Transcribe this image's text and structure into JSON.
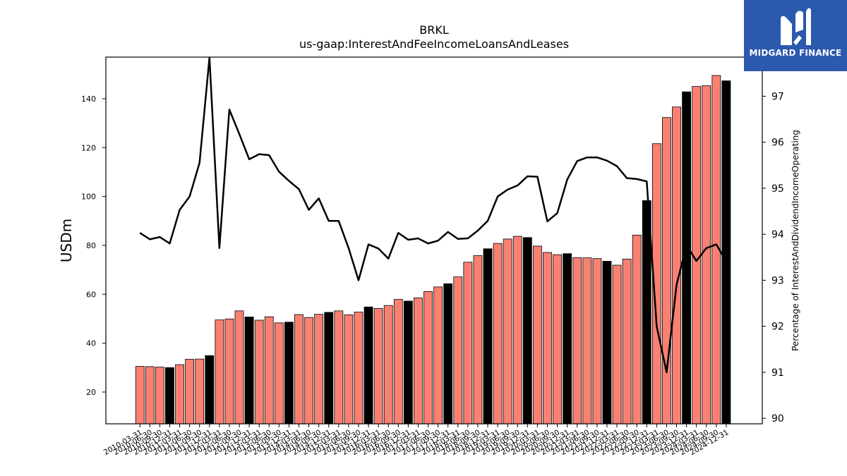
{
  "brand": {
    "name": "MIDGARD FINANCE",
    "icon": "midgard-m-icon",
    "color": "#2b59ad"
  },
  "chart_data": {
    "type": "bar",
    "title": "BRKL",
    "subtitle": "us-gaap:InterestAndFeeIncomeLoansAndLeases",
    "ylabel": "USDm",
    "y2label": "Percentage of InterestAndDividendIncomeOperating",
    "ylim": [
      7,
      157
    ],
    "y2lim": [
      89.88,
      97.85
    ],
    "yticks": [
      20,
      40,
      60,
      80,
      100,
      120,
      140
    ],
    "y2ticks": [
      90,
      91,
      92,
      93,
      94,
      95,
      96,
      97
    ],
    "bar_color": "#fa8072",
    "q4_bar_color": "#000000",
    "line_color": "#000000",
    "grid": false,
    "categories": [
      "2010-03-31",
      "2010-06-30",
      "2010-09-30",
      "2010-12-31",
      "2011-03-31",
      "2011-06-30",
      "2011-09-30",
      "2011-12-31",
      "2012-03-31",
      "2012-06-30",
      "2012-09-30",
      "2012-12-31",
      "2013-03-31",
      "2013-06-30",
      "2013-09-30",
      "2013-12-31",
      "2014-03-31",
      "2014-06-30",
      "2014-09-30",
      "2014-12-31",
      "2015-03-31",
      "2015-06-30",
      "2015-09-30",
      "2015-12-31",
      "2016-03-31",
      "2016-06-30",
      "2016-09-30",
      "2016-12-31",
      "2017-03-31",
      "2017-06-30",
      "2017-09-30",
      "2017-12-31",
      "2018-03-31",
      "2018-06-30",
      "2018-09-30",
      "2018-12-31",
      "2019-03-31",
      "2019-06-30",
      "2019-09-30",
      "2019-12-31",
      "2020-03-31",
      "2020-06-30",
      "2020-09-30",
      "2020-12-31",
      "2021-03-31",
      "2021-06-30",
      "2021-09-30",
      "2021-12-31",
      "2022-03-31",
      "2022-06-30",
      "2022-09-30",
      "2022-12-31",
      "2023-03-31",
      "2023-06-30",
      "2023-09-30",
      "2023-12-31",
      "2024-03-31",
      "2024-06-30",
      "2024-09-30",
      "2024-12-31"
    ],
    "xtick_labels": [
      "2010-03-31",
      "2010-06-30",
      "2010-09-30",
      "2010-12-31",
      "2011-03-31",
      "2011-06-30",
      "2011-09-30",
      "2011-12-31",
      "2012-03-31",
      "2012-06-30",
      "2012-09-30",
      "2012-12-31",
      "2013-03-31",
      "2013-06-30",
      "2013-09-30",
      "2013-12-31",
      "2014-03-31",
      "2014-06-30",
      "2014-09-30",
      "2014-12-31",
      "2015-03-31",
      "2015-06-30",
      "2015-09-30",
      "2015-12-31",
      "2016-03-31",
      "2016-06-30",
      "2016-09-30",
      "2016-12-31",
      "2017-03-31",
      "2017-06-30",
      "2017-09-30",
      "2017-12-31",
      "2018-03-31",
      "2018-06-30",
      "2018-09-30",
      "2018-12-31",
      "2019-03-31",
      "2019-06-30",
      "2019-09-30",
      "2019-12-31",
      "2020-03-31",
      "2020-06-30",
      "2020-09-30",
      "2020-12-31",
      "2021-03-31",
      "2021-06-30",
      "2021-09-30",
      "2021-12-31",
      "2022-03-31",
      "2022-06-30",
      "2022-09-30",
      "2022-12-31",
      "2023-03-31",
      "2023-06-30",
      "2023-09-30",
      "2023-12-31",
      "2024-03-31",
      "2024-06-30",
      "2024-09-30",
      "2024-12-31"
    ],
    "series": [
      {
        "type": "bar",
        "axis": "left",
        "values": [
          30.5,
          30.4,
          30.2,
          30.0,
          31.2,
          33.4,
          33.5,
          34.9,
          49.5,
          49.9,
          53.2,
          50.7,
          49.4,
          50.8,
          48.3,
          48.6,
          51.7,
          50.5,
          51.8,
          52.6,
          53.2,
          51.6,
          52.7,
          54.8,
          54.2,
          55.4,
          57.9,
          57.2,
          58.5,
          61.1,
          63.0,
          64.3,
          67.1,
          73.1,
          75.8,
          78.6,
          80.8,
          82.6,
          83.7,
          83.2,
          79.7,
          77.1,
          76.2,
          76.6,
          75.0,
          74.9,
          74.6,
          73.5,
          71.9,
          74.4,
          84.2,
          98.3,
          121.6,
          132.3,
          136.6,
          142.8,
          145.0,
          145.3,
          149.5,
          147.3
        ]
      },
      {
        "type": "line",
        "axis": "right",
        "values": [
          94.03,
          93.89,
          93.94,
          93.8,
          94.53,
          94.82,
          95.55,
          97.84,
          93.7,
          96.71,
          96.18,
          95.63,
          95.74,
          95.72,
          95.36,
          95.16,
          94.98,
          94.53,
          94.78,
          94.29,
          94.29,
          93.7,
          93.0,
          93.78,
          93.69,
          93.47,
          94.03,
          93.88,
          93.91,
          93.8,
          93.86,
          94.05,
          93.9,
          93.91,
          94.08,
          94.29,
          94.82,
          94.97,
          95.06,
          95.26,
          95.25,
          94.28,
          94.46,
          95.19,
          95.59,
          95.67,
          95.67,
          95.6,
          95.48,
          95.22,
          95.2,
          95.15,
          92.0,
          91.0,
          92.9,
          93.76,
          93.42,
          93.7,
          93.78,
          93.41
        ]
      }
    ]
  }
}
